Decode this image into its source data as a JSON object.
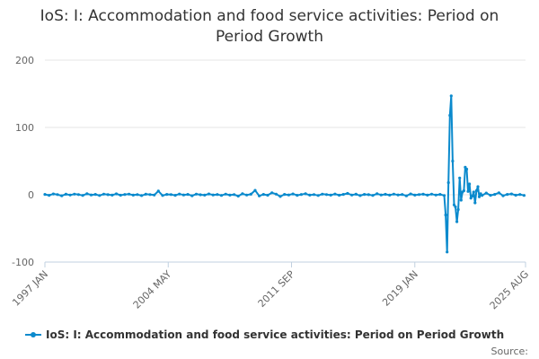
{
  "chart_data": {
    "type": "line",
    "title_lines": [
      "IoS: I: Accommodation and food service activities: Period on",
      "Period Growth"
    ],
    "xlabel": "",
    "ylabel": "",
    "ylim": [
      -100,
      200
    ],
    "yticks": [
      200,
      100,
      0,
      -100
    ],
    "x_tick_labels": [
      "1997 JAN",
      "2004 MAY",
      "2011 SEP",
      "2019 JAN",
      "2025 AUG"
    ],
    "x_tick_months_from_start": [
      0,
      88,
      176,
      264,
      343
    ],
    "grid": true,
    "legend": "bottom-center",
    "series": [
      {
        "name": "IoS: I: Accommodation and food service activities: Period on Period Growth",
        "color": "#0b8acd",
        "x_months_from_start": [
          0,
          3,
          6,
          9,
          12,
          15,
          18,
          21,
          24,
          27,
          30,
          33,
          36,
          39,
          42,
          45,
          48,
          51,
          54,
          57,
          60,
          63,
          66,
          69,
          72,
          75,
          78,
          81,
          84,
          87,
          90,
          93,
          96,
          99,
          102,
          105,
          108,
          111,
          114,
          117,
          120,
          123,
          126,
          129,
          132,
          135,
          138,
          141,
          144,
          147,
          150,
          153,
          156,
          159,
          162,
          165,
          168,
          171,
          174,
          177,
          180,
          183,
          186,
          189,
          192,
          195,
          198,
          201,
          204,
          207,
          210,
          213,
          216,
          219,
          222,
          225,
          228,
          231,
          234,
          237,
          240,
          243,
          246,
          249,
          252,
          255,
          258,
          261,
          264,
          267,
          270,
          273,
          276,
          279,
          282,
          285,
          286,
          287,
          288,
          289,
          290,
          291,
          292,
          293,
          294,
          295,
          296,
          297,
          298,
          299,
          300,
          301,
          302,
          303,
          304,
          305,
          306,
          307,
          308,
          309,
          310,
          311,
          312,
          315,
          318,
          321,
          324,
          327,
          330,
          333,
          336,
          339,
          342,
          343
        ],
        "values": [
          0.5,
          -0.8,
          1.2,
          0.3,
          -1.5,
          0.8,
          -0.4,
          1.0,
          0.2,
          -0.9,
          1.4,
          -0.3,
          0.6,
          -1.1,
          0.9,
          0.1,
          -0.5,
          1.3,
          -0.7,
          0.4,
          1.0,
          -0.6,
          0.2,
          -1.2,
          0.8,
          0.3,
          -0.4,
          5.5,
          -1.0,
          0.6,
          0.2,
          -0.8,
          1.1,
          -0.3,
          0.5,
          -1.4,
          0.9,
          0.0,
          -0.6,
          1.2,
          -0.2,
          0.4,
          -0.9,
          1.0,
          -0.5,
          0.3,
          -2.0,
          1.5,
          -0.4,
          0.8,
          6.5,
          -1.8,
          0.5,
          -0.7,
          3.0,
          1.0,
          -2.5,
          0.6,
          -0.3,
          1.2,
          -0.8,
          0.4,
          1.5,
          -0.6,
          0.2,
          -1.0,
          0.9,
          0.3,
          -0.5,
          1.1,
          -0.7,
          0.5,
          2.0,
          -0.4,
          0.8,
          -1.2,
          0.6,
          0.1,
          -0.9,
          1.4,
          -0.3,
          0.7,
          -0.5,
          1.0,
          -0.2,
          0.4,
          -1.6,
          1.2,
          -0.5,
          0.3,
          0.8,
          -0.6,
          1.0,
          -0.4,
          0.6,
          -1.0,
          -30,
          -85,
          18,
          118,
          147,
          50,
          -15,
          -18,
          -40,
          -22,
          25,
          -8,
          4,
          6,
          41,
          38,
          5,
          16,
          -5,
          -2,
          4,
          -12,
          6,
          12,
          -3,
          1.5,
          -1.0,
          2.5,
          -0.8,
          0.5,
          3.0,
          -1.5,
          0.6,
          1.2,
          -0.7,
          0.4,
          -0.9
        ]
      }
    ]
  },
  "source_label": "Source:"
}
